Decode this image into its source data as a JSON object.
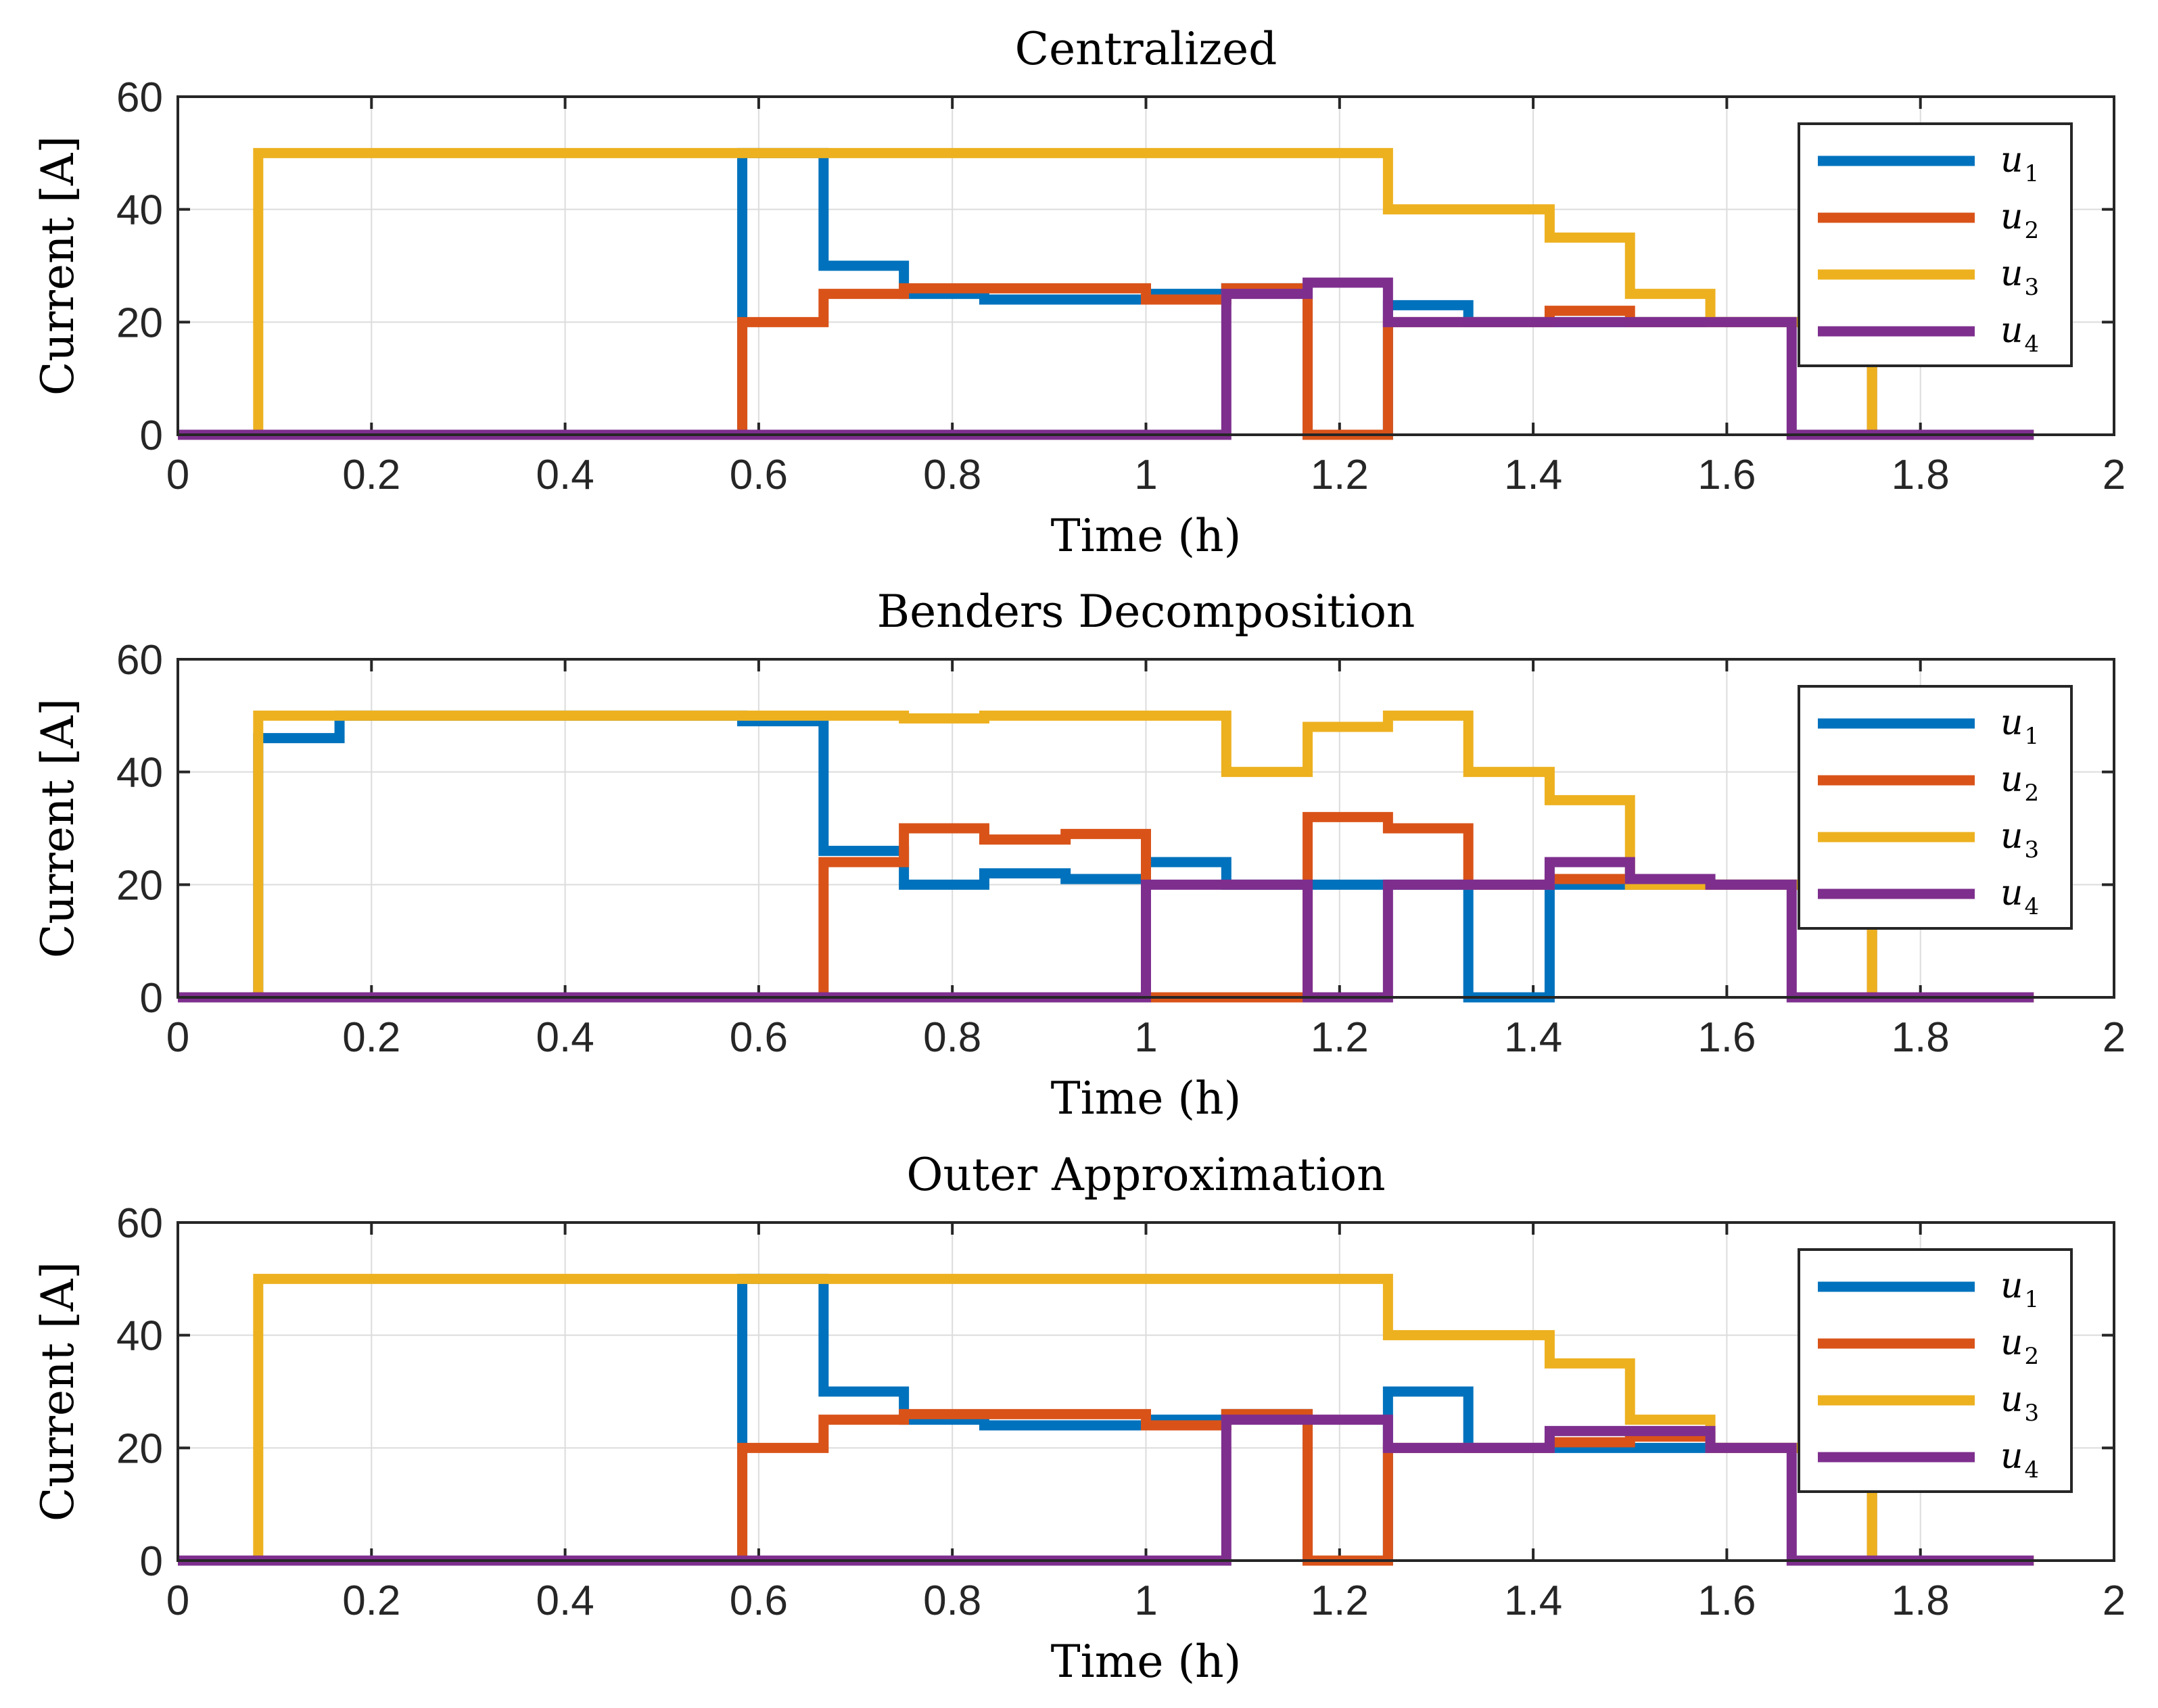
{
  "colors": {
    "u1": "#0072BD",
    "u2": "#D95319",
    "u3": "#EDB120",
    "u4": "#7E2F8E"
  },
  "chart_data": [
    {
      "type": "line",
      "title": "Centralized",
      "xlabel": "Time (h)",
      "ylabel": "Current [A]",
      "xlim": [
        0,
        2
      ],
      "ylim": [
        0,
        60
      ],
      "xticks": [
        "0",
        "0.2",
        "0.4",
        "0.6",
        "0.8",
        "1",
        "1.2",
        "1.4",
        "1.6",
        "1.8",
        "2"
      ],
      "yticks": [
        "0",
        "20",
        "40",
        "60"
      ],
      "grid": true,
      "legend_position": "top-right",
      "legend": [
        {
          "base": "u",
          "sub": "1"
        },
        {
          "base": "u",
          "sub": "2"
        },
        {
          "base": "u",
          "sub": "3"
        },
        {
          "base": "u",
          "sub": "4"
        }
      ],
      "series": [
        {
          "name": "u1",
          "color_key": "u1",
          "step": true,
          "x": [
            0,
            0.083,
            0.167,
            0.25,
            0.333,
            0.417,
            0.5,
            0.583,
            0.667,
            0.75,
            0.833,
            0.917,
            1.0,
            1.083,
            1.167,
            1.25,
            1.333,
            1.417,
            1.5,
            1.583,
            1.667,
            1.75,
            1.833,
            1.917
          ],
          "y": [
            0,
            0,
            0,
            0,
            0,
            0,
            0,
            50,
            30,
            25,
            24,
            24,
            25,
            26,
            0,
            23,
            20,
            20,
            20,
            20,
            20,
            0,
            0,
            0
          ]
        },
        {
          "name": "u2",
          "color_key": "u2",
          "step": true,
          "x": [
            0,
            0.083,
            0.167,
            0.25,
            0.333,
            0.417,
            0.5,
            0.583,
            0.667,
            0.75,
            0.833,
            0.917,
            1.0,
            1.083,
            1.167,
            1.25,
            1.333,
            1.417,
            1.5,
            1.583,
            1.667,
            1.75,
            1.833,
            1.917
          ],
          "y": [
            0,
            0,
            0,
            0,
            0,
            0,
            0,
            20,
            25,
            26,
            26,
            26,
            24,
            26,
            0,
            20,
            20,
            22,
            20,
            20,
            20,
            0,
            0,
            0
          ]
        },
        {
          "name": "u3",
          "color_key": "u3",
          "step": true,
          "x": [
            0,
            0.083,
            0.167,
            0.25,
            0.333,
            0.417,
            0.5,
            0.583,
            0.667,
            0.75,
            0.833,
            0.917,
            1.0,
            1.083,
            1.167,
            1.25,
            1.333,
            1.417,
            1.5,
            1.583,
            1.667,
            1.75,
            1.833,
            1.917
          ],
          "y": [
            0,
            50,
            50,
            50,
            50,
            50,
            50,
            50,
            50,
            50,
            50,
            50,
            50,
            50,
            50,
            40,
            40,
            35,
            25,
            20,
            20,
            0,
            0,
            0
          ]
        },
        {
          "name": "u4",
          "color_key": "u4",
          "step": true,
          "x": [
            0,
            0.083,
            0.167,
            0.25,
            0.333,
            0.417,
            0.5,
            0.583,
            0.667,
            0.75,
            0.833,
            0.917,
            1.0,
            1.083,
            1.167,
            1.25,
            1.333,
            1.417,
            1.5,
            1.583,
            1.667,
            1.75,
            1.833,
            1.917
          ],
          "y": [
            0,
            0,
            0,
            0,
            0,
            0,
            0,
            0,
            0,
            0,
            0,
            0,
            0,
            25,
            27,
            20,
            20,
            20,
            20,
            20,
            0,
            0,
            0,
            0
          ]
        }
      ]
    },
    {
      "type": "line",
      "title": "Benders Decomposition",
      "xlabel": "Time (h)",
      "ylabel": "Current [A]",
      "xlim": [
        0,
        2
      ],
      "ylim": [
        0,
        60
      ],
      "xticks": [
        "0",
        "0.2",
        "0.4",
        "0.6",
        "0.8",
        "1",
        "1.2",
        "1.4",
        "1.6",
        "1.8",
        "2"
      ],
      "yticks": [
        "0",
        "20",
        "40",
        "60"
      ],
      "grid": true,
      "legend_position": "top-right",
      "legend": [
        {
          "base": "u",
          "sub": "1"
        },
        {
          "base": "u",
          "sub": "2"
        },
        {
          "base": "u",
          "sub": "3"
        },
        {
          "base": "u",
          "sub": "4"
        }
      ],
      "series": [
        {
          "name": "u1",
          "color_key": "u1",
          "step": true,
          "x": [
            0,
            0.083,
            0.167,
            0.25,
            0.333,
            0.417,
            0.5,
            0.583,
            0.667,
            0.75,
            0.833,
            0.917,
            1.0,
            1.083,
            1.167,
            1.25,
            1.333,
            1.417,
            1.5,
            1.583,
            1.667,
            1.75,
            1.833,
            1.917
          ],
          "y": [
            0,
            46,
            50,
            50,
            50,
            50,
            50,
            49,
            26,
            20,
            22,
            21,
            24,
            20,
            20,
            20,
            0,
            20,
            20,
            20,
            20,
            0,
            0,
            0
          ]
        },
        {
          "name": "u2",
          "color_key": "u2",
          "step": true,
          "x": [
            0,
            0.083,
            0.167,
            0.25,
            0.333,
            0.417,
            0.5,
            0.583,
            0.667,
            0.75,
            0.833,
            0.917,
            1.0,
            1.083,
            1.167,
            1.25,
            1.333,
            1.417,
            1.5,
            1.583,
            1.667,
            1.75,
            1.833,
            1.917
          ],
          "y": [
            0,
            0,
            0,
            0,
            0,
            0,
            0,
            0,
            24,
            30,
            28,
            29,
            0,
            0,
            32,
            30,
            20,
            21,
            20,
            20,
            20,
            0,
            0,
            0
          ]
        },
        {
          "name": "u3",
          "color_key": "u3",
          "step": true,
          "x": [
            0,
            0.083,
            0.167,
            0.25,
            0.333,
            0.417,
            0.5,
            0.583,
            0.667,
            0.75,
            0.833,
            0.917,
            1.0,
            1.083,
            1.167,
            1.25,
            1.333,
            1.417,
            1.5,
            1.583,
            1.667,
            1.75,
            1.833,
            1.917
          ],
          "y": [
            0,
            50,
            50,
            50,
            50,
            50,
            50,
            50,
            50,
            49.5,
            50,
            50,
            50,
            40,
            48,
            50,
            40,
            35,
            20,
            20,
            20,
            0,
            0,
            0
          ]
        },
        {
          "name": "u4",
          "color_key": "u4",
          "step": true,
          "x": [
            0,
            0.083,
            0.167,
            0.25,
            0.333,
            0.417,
            0.5,
            0.583,
            0.667,
            0.75,
            0.833,
            0.917,
            1.0,
            1.083,
            1.167,
            1.25,
            1.333,
            1.417,
            1.5,
            1.583,
            1.667,
            1.75,
            1.833,
            1.917
          ],
          "y": [
            0,
            0,
            0,
            0,
            0,
            0,
            0,
            0,
            0,
            0,
            0,
            0,
            20,
            20,
            0,
            20,
            20,
            24,
            21,
            20,
            0,
            0,
            0,
            0
          ]
        }
      ]
    },
    {
      "type": "line",
      "title": "Outer Approximation",
      "xlabel": "Time (h)",
      "ylabel": "Current [A]",
      "xlim": [
        0,
        2
      ],
      "ylim": [
        0,
        60
      ],
      "xticks": [
        "0",
        "0.2",
        "0.4",
        "0.6",
        "0.8",
        "1",
        "1.2",
        "1.4",
        "1.6",
        "1.8",
        "2"
      ],
      "yticks": [
        "0",
        "20",
        "40",
        "60"
      ],
      "grid": true,
      "legend_position": "top-right",
      "legend": [
        {
          "base": "u",
          "sub": "1"
        },
        {
          "base": "u",
          "sub": "2"
        },
        {
          "base": "u",
          "sub": "3"
        },
        {
          "base": "u",
          "sub": "4"
        }
      ],
      "series": [
        {
          "name": "u1",
          "color_key": "u1",
          "step": true,
          "x": [
            0,
            0.083,
            0.167,
            0.25,
            0.333,
            0.417,
            0.5,
            0.583,
            0.667,
            0.75,
            0.833,
            0.917,
            1.0,
            1.083,
            1.167,
            1.25,
            1.333,
            1.417,
            1.5,
            1.583,
            1.667,
            1.75,
            1.833,
            1.917
          ],
          "y": [
            0,
            0,
            0,
            0,
            0,
            0,
            0,
            50,
            30,
            25,
            24,
            24,
            25,
            26,
            0,
            30,
            20,
            20,
            20,
            20,
            20,
            0,
            0,
            0
          ]
        },
        {
          "name": "u2",
          "color_key": "u2",
          "step": true,
          "x": [
            0,
            0.083,
            0.167,
            0.25,
            0.333,
            0.417,
            0.5,
            0.583,
            0.667,
            0.75,
            0.833,
            0.917,
            1.0,
            1.083,
            1.167,
            1.25,
            1.333,
            1.417,
            1.5,
            1.583,
            1.667,
            1.75,
            1.833,
            1.917
          ],
          "y": [
            0,
            0,
            0,
            0,
            0,
            0,
            0,
            20,
            25,
            26,
            26,
            26,
            24,
            26,
            0,
            20,
            20,
            21,
            22,
            20,
            20,
            0,
            0,
            0
          ]
        },
        {
          "name": "u3",
          "color_key": "u3",
          "step": true,
          "x": [
            0,
            0.083,
            0.167,
            0.25,
            0.333,
            0.417,
            0.5,
            0.583,
            0.667,
            0.75,
            0.833,
            0.917,
            1.0,
            1.083,
            1.167,
            1.25,
            1.333,
            1.417,
            1.5,
            1.583,
            1.667,
            1.75,
            1.833,
            1.917
          ],
          "y": [
            0,
            50,
            50,
            50,
            50,
            50,
            50,
            50,
            50,
            50,
            50,
            50,
            50,
            50,
            50,
            40,
            40,
            35,
            25,
            20,
            20,
            0,
            0,
            0
          ]
        },
        {
          "name": "u4",
          "color_key": "u4",
          "step": true,
          "x": [
            0,
            0.083,
            0.167,
            0.25,
            0.333,
            0.417,
            0.5,
            0.583,
            0.667,
            0.75,
            0.833,
            0.917,
            1.0,
            1.083,
            1.167,
            1.25,
            1.333,
            1.417,
            1.5,
            1.583,
            1.667,
            1.75,
            1.833,
            1.917
          ],
          "y": [
            0,
            0,
            0,
            0,
            0,
            0,
            0,
            0,
            0,
            0,
            0,
            0,
            0,
            25,
            25,
            20,
            20,
            23,
            23,
            20,
            0,
            0,
            0,
            0
          ]
        }
      ]
    }
  ]
}
